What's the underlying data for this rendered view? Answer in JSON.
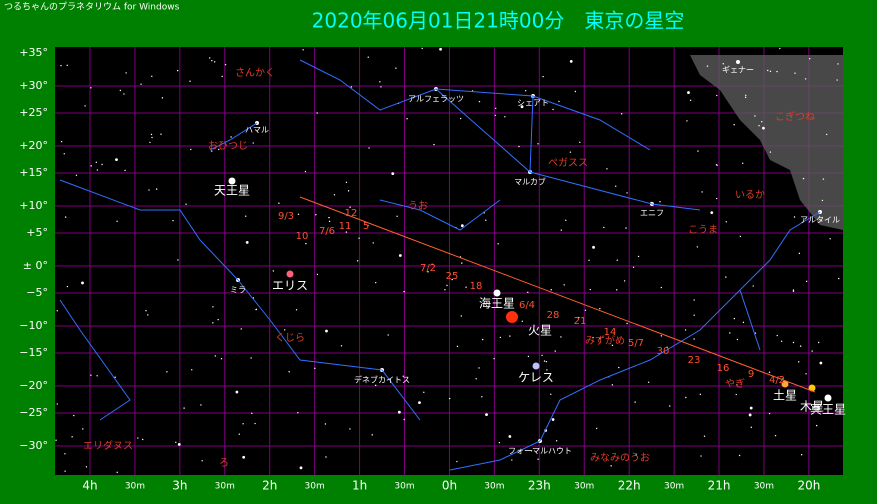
{
  "window": {
    "title": "つるちゃんのプラネタリウム for Windows"
  },
  "header": {
    "title": "2020年06月01日21時00分　東京の星空"
  },
  "axes": {
    "declination": [
      "+35°",
      "+30°",
      "+25°",
      "+20°",
      "+15°",
      "+10°",
      "+5°",
      "± 0°",
      "−5°",
      "−10°",
      "−15°",
      "−20°",
      "−25°",
      "−30°"
    ],
    "right_ascension": [
      "4h",
      "30m",
      "3h",
      "30m",
      "2h",
      "30m",
      "1h",
      "30m",
      "0h",
      "30m",
      "23h",
      "30m",
      "22h",
      "30m",
      "21h",
      "30m",
      "20h"
    ]
  },
  "constellations": [
    "さんかく",
    "おひつじ",
    "うお",
    "ペガスス",
    "くじら",
    "エリダヌス",
    "みずがめ",
    "やぎ",
    "みなみのうお",
    "いるか",
    "こうま",
    "こぎつね",
    "ろ"
  ],
  "stars": [
    "アルフェラッツ",
    "シェアト",
    "マルカブ",
    "ハマル",
    "ミラ",
    "デネブカイトス",
    "フォーマルハウト",
    "エニフ",
    "アルタイル",
    "ギェナー"
  ],
  "planets": [
    "天王星",
    "エリス",
    "海王星",
    "火星",
    "ケレス",
    "土星",
    "木星",
    "冥王星"
  ],
  "mars_path_dates": [
    "9/3",
    "10",
    "7/6",
    "12",
    "11",
    "5",
    "7/2",
    "25",
    "18",
    "6/4",
    "28",
    "21",
    "14",
    "5/7",
    "30",
    "23",
    "16",
    "9",
    "4/2"
  ]
}
